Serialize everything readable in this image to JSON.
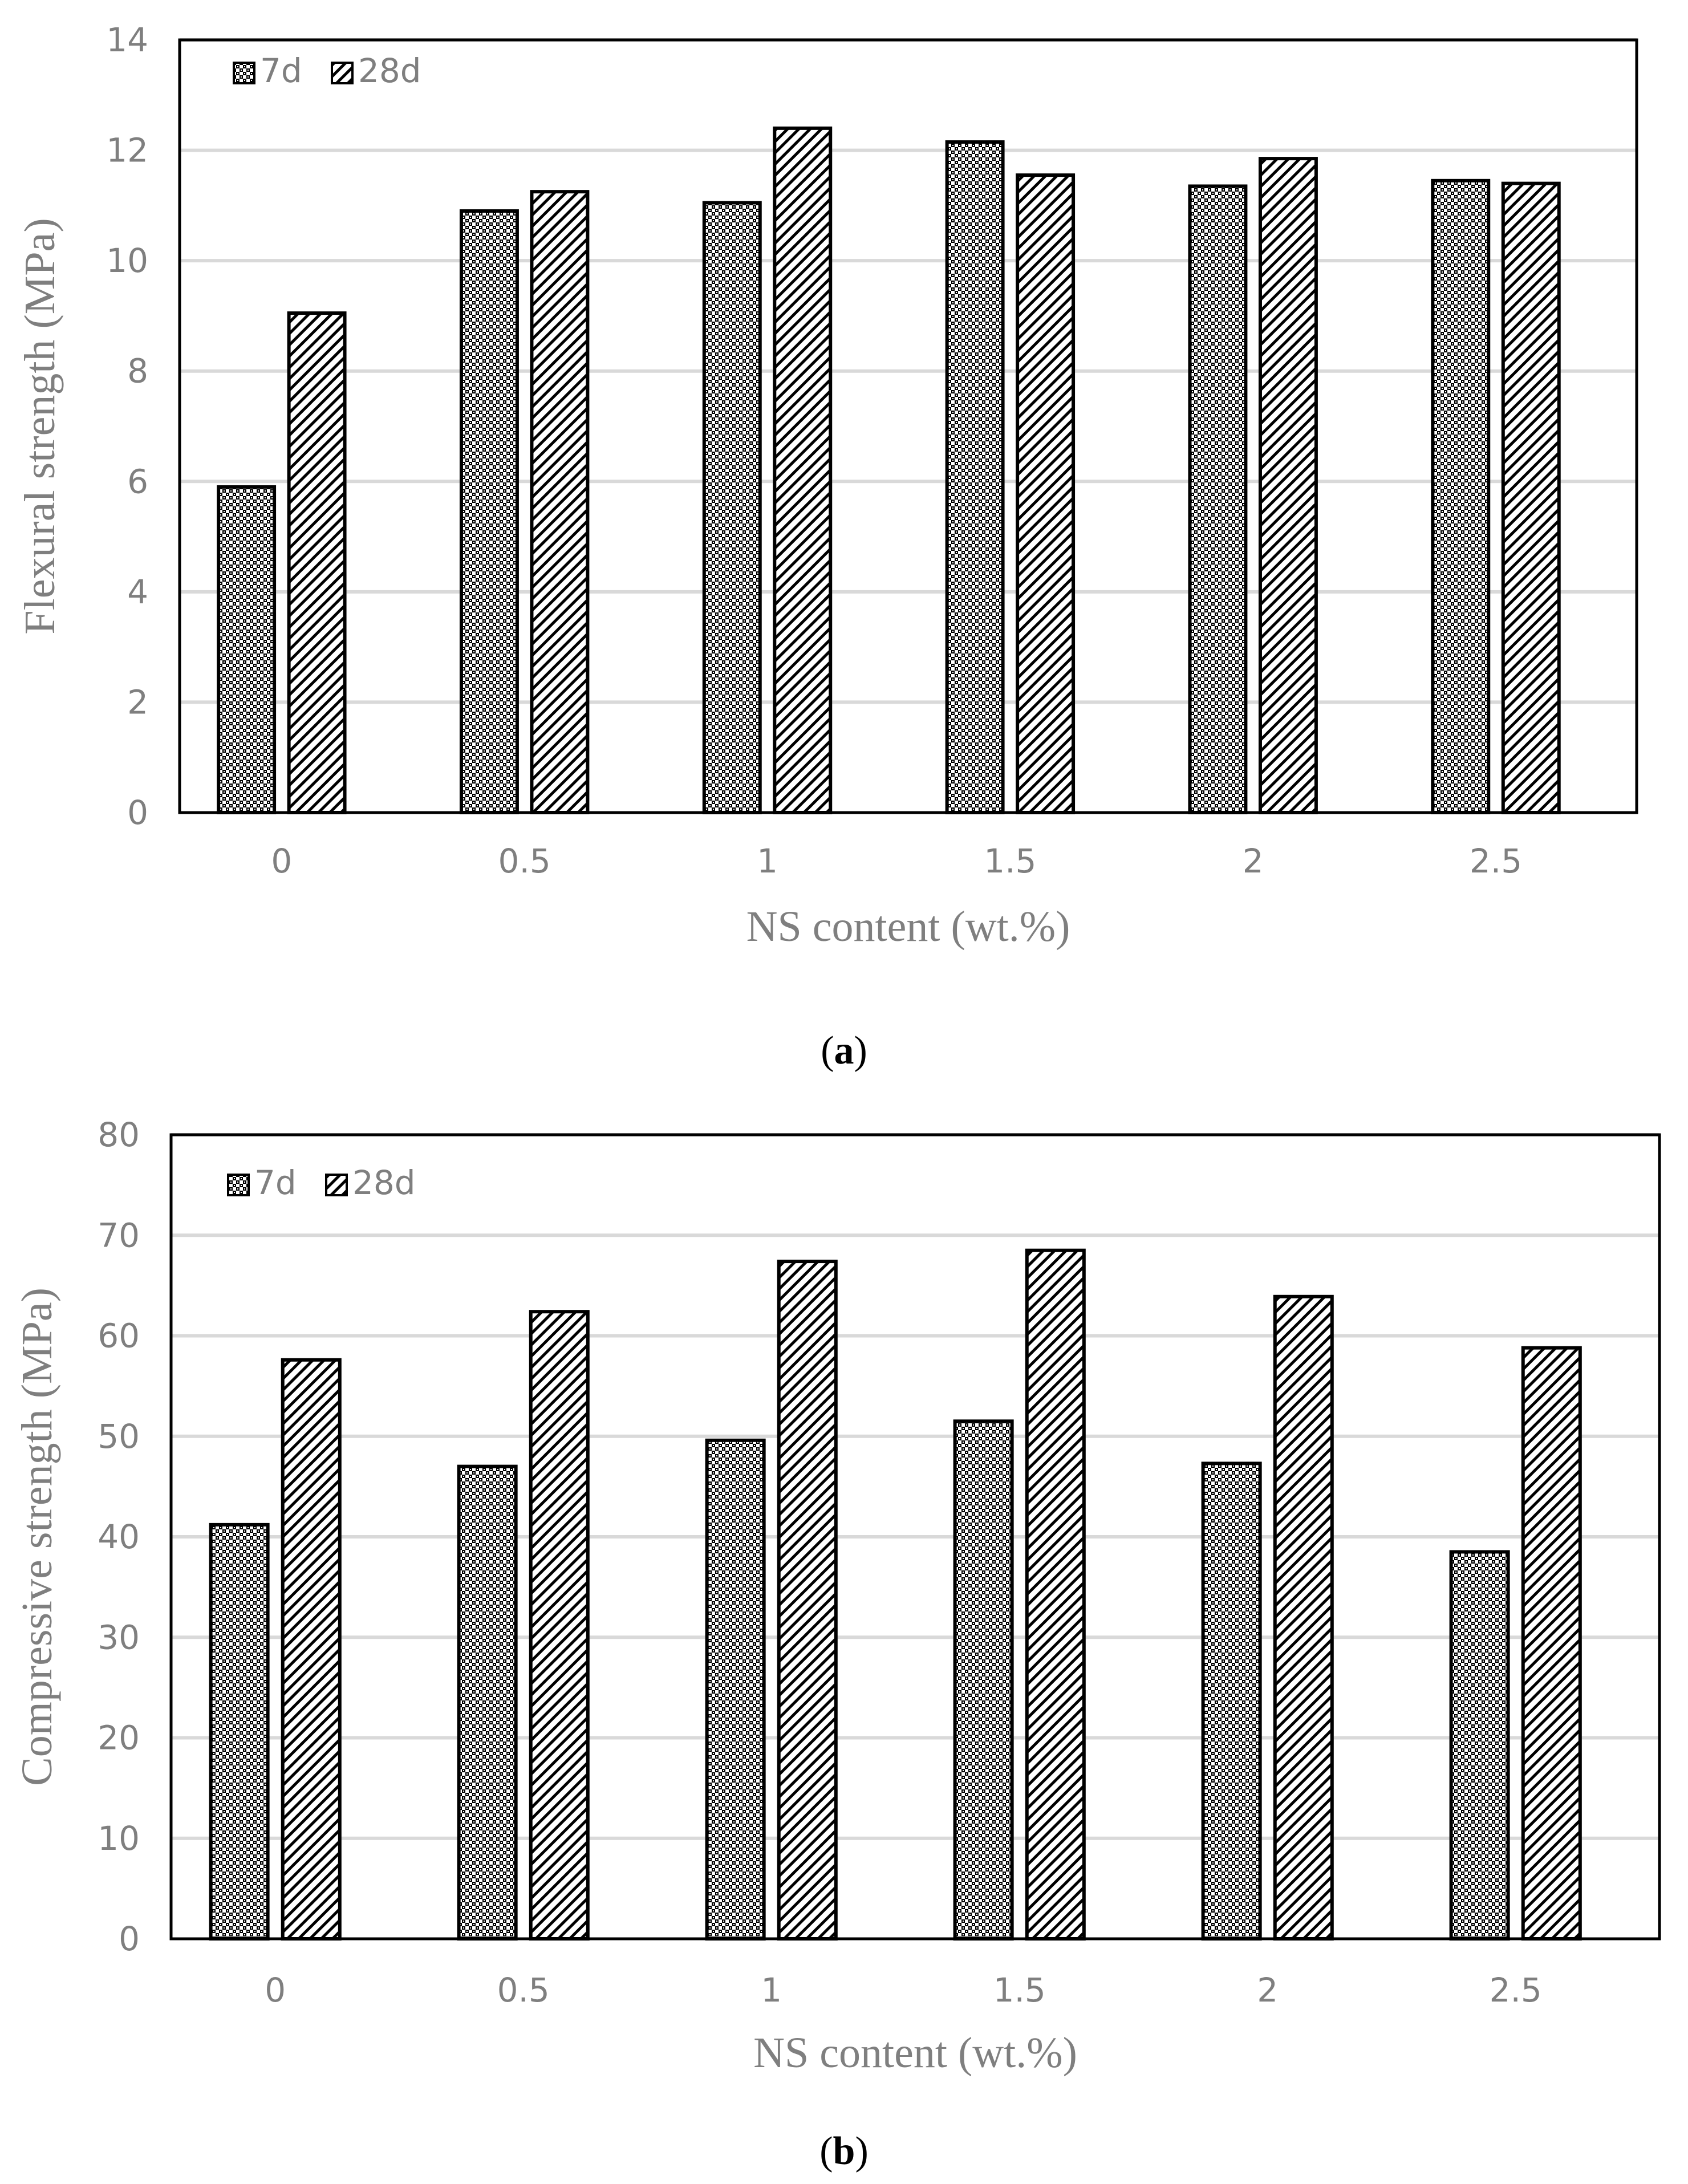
{
  "chart_data": [
    {
      "type": "bar",
      "categories": [
        "0",
        "0.5",
        "1",
        "1.5",
        "2",
        "2.5"
      ],
      "series": [
        {
          "name": "7d",
          "values": [
            5.9,
            10.9,
            11.05,
            12.15,
            11.35,
            11.45
          ],
          "pattern": "dots"
        },
        {
          "name": "28d",
          "values": [
            9.05,
            11.25,
            12.4,
            11.55,
            11.85,
            11.4
          ],
          "pattern": "stripes"
        }
      ],
      "xlabel": "NS content (wt.%)",
      "ylabel": "Flexural strength (MPa)",
      "ylim": [
        0,
        14
      ],
      "yticks": [
        "0",
        "2",
        "4",
        "6",
        "8",
        "10",
        "12",
        "14"
      ],
      "grid": true,
      "legend_position": "top-left",
      "panel_label": {
        "open": "(",
        "letter": "a",
        "close": ")"
      }
    },
    {
      "type": "bar",
      "categories": [
        "0",
        "0.5",
        "1",
        "1.5",
        "2",
        "2.5"
      ],
      "series": [
        {
          "name": "7d",
          "values": [
            41.2,
            47.0,
            49.6,
            51.5,
            47.3,
            38.5
          ],
          "pattern": "dots"
        },
        {
          "name": "28d",
          "values": [
            57.6,
            62.4,
            67.4,
            68.5,
            63.9,
            58.8
          ],
          "pattern": "stripes"
        }
      ],
      "xlabel": "NS content (wt.%)",
      "ylabel": "Compressive strength (MPa)",
      "ylim": [
        0,
        80
      ],
      "yticks": [
        "0",
        "10",
        "20",
        "30",
        "40",
        "50",
        "60",
        "70",
        "80"
      ],
      "grid": true,
      "legend_position": "top-left",
      "panel_label": {
        "open": "(",
        "letter": "b",
        "close": ")"
      }
    }
  ],
  "colors": {
    "bar_outline": "#000000",
    "grid": "#d9d9d9",
    "text": "#7f7f7f"
  }
}
